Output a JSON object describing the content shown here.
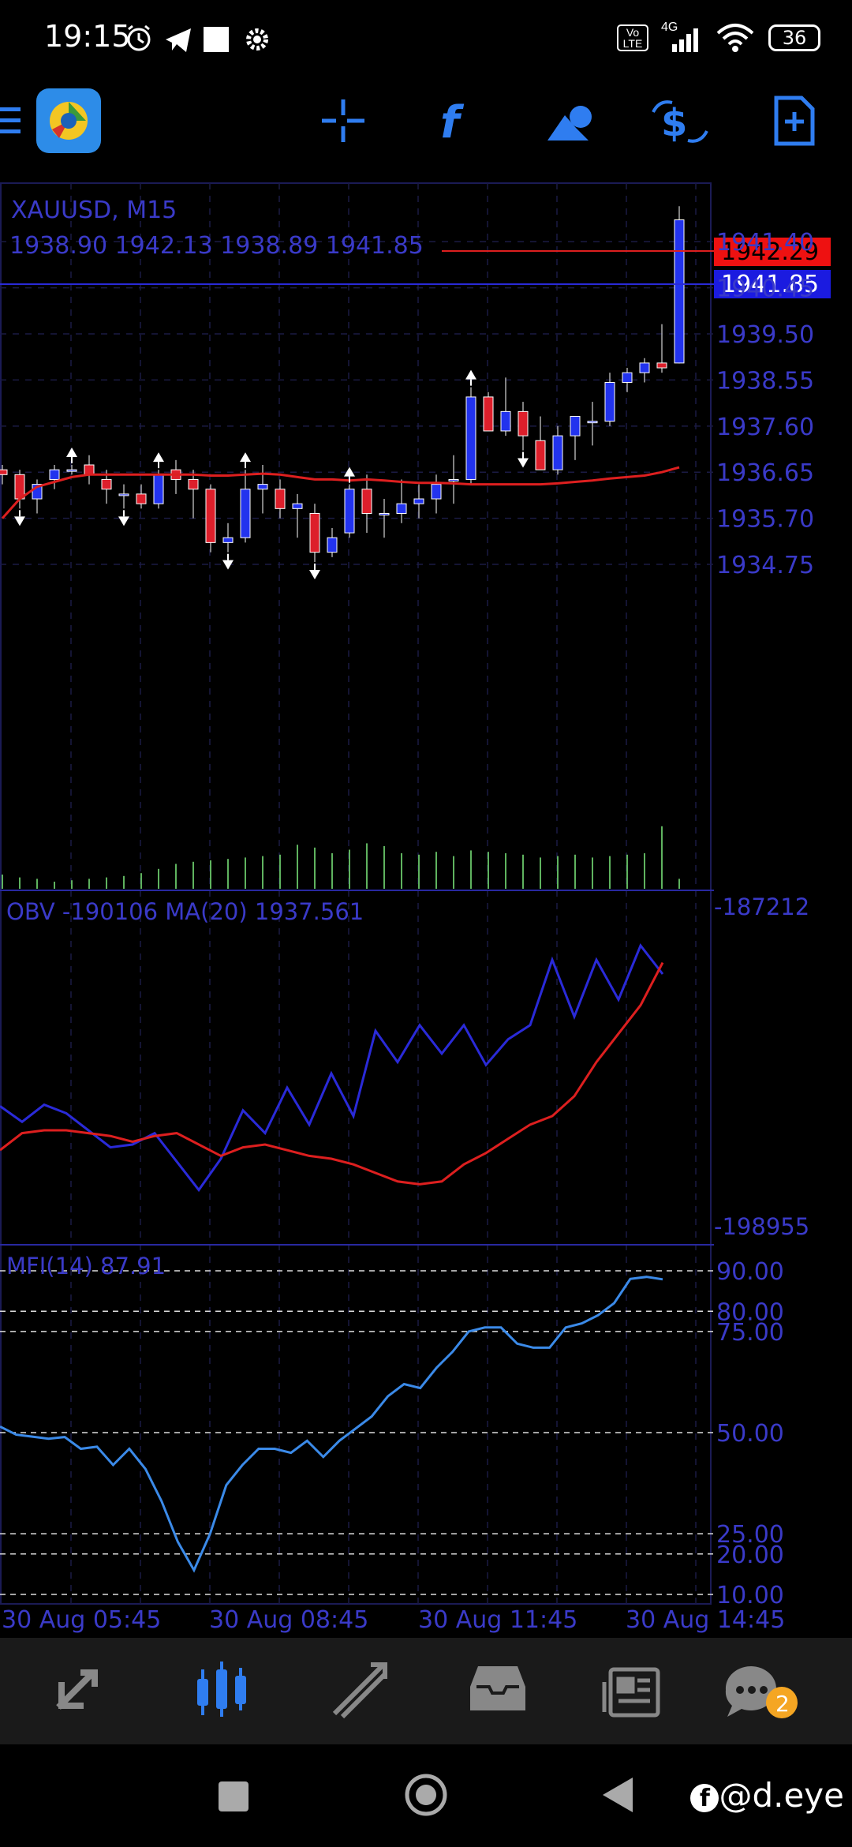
{
  "status_bar": {
    "time": "19:15",
    "network": "4G",
    "volte": "Vo LTE",
    "battery": "36"
  },
  "toolbar": {
    "icons": [
      "menu-icon",
      "app-logo-icon",
      "crosshair-icon",
      "indicator-f-icon",
      "objects-icon",
      "dollar-trade-icon",
      "new-order-icon"
    ]
  },
  "main_chart": {
    "symbol_label": "XAUUSD, M15",
    "ohlc_label": "1938.90 1942.13 1938.89 1941.85",
    "ask_price": "1942.29",
    "bid_price": "1941.85",
    "price_ticks": [
      "1941.40",
      "1940.45",
      "1939.50",
      "1938.55",
      "1937.60",
      "1936.65",
      "1935.70",
      "1934.75"
    ],
    "colors": {
      "bull": "#2233ee",
      "bear": "#dd1f2b",
      "ma": "#dd1f1f",
      "grid": "#1b1b44",
      "axis_text": "#3a3ac8"
    }
  },
  "chart_data": [
    {
      "type": "candlestick",
      "title": "XAUUSD, M15",
      "ylim": [
        1934.1,
        1942.2
      ],
      "candles": [
        {
          "o": 1936.7,
          "h": 1936.8,
          "l": 1936.4,
          "c": 1936.6
        },
        {
          "o": 1936.6,
          "h": 1936.7,
          "l": 1935.9,
          "c": 1936.1
        },
        {
          "o": 1936.1,
          "h": 1936.5,
          "l": 1935.8,
          "c": 1936.4
        },
        {
          "o": 1936.5,
          "h": 1936.8,
          "l": 1936.3,
          "c": 1936.7
        },
        {
          "o": 1936.7,
          "h": 1936.8,
          "l": 1936.6,
          "c": 1936.7
        },
        {
          "o": 1936.8,
          "h": 1937.0,
          "l": 1936.4,
          "c": 1936.6
        },
        {
          "o": 1936.5,
          "h": 1936.7,
          "l": 1936.0,
          "c": 1936.3
        },
        {
          "o": 1936.2,
          "h": 1936.4,
          "l": 1935.9,
          "c": 1936.2
        },
        {
          "o": 1936.2,
          "h": 1936.4,
          "l": 1935.9,
          "c": 1936.0
        },
        {
          "o": 1936.0,
          "h": 1936.7,
          "l": 1935.9,
          "c": 1936.6
        },
        {
          "o": 1936.7,
          "h": 1936.9,
          "l": 1936.2,
          "c": 1936.5
        },
        {
          "o": 1936.5,
          "h": 1936.7,
          "l": 1935.7,
          "c": 1936.3
        },
        {
          "o": 1936.3,
          "h": 1936.4,
          "l": 1935.0,
          "c": 1935.2
        },
        {
          "o": 1935.2,
          "h": 1935.6,
          "l": 1935.0,
          "c": 1935.3
        },
        {
          "o": 1935.3,
          "h": 1936.7,
          "l": 1935.2,
          "c": 1936.3
        },
        {
          "o": 1936.3,
          "h": 1936.8,
          "l": 1935.8,
          "c": 1936.4
        },
        {
          "o": 1936.3,
          "h": 1936.5,
          "l": 1935.7,
          "c": 1935.9
        },
        {
          "o": 1935.9,
          "h": 1936.2,
          "l": 1935.3,
          "c": 1936.0
        },
        {
          "o": 1935.8,
          "h": 1936.0,
          "l": 1934.8,
          "c": 1935.0
        },
        {
          "o": 1935.0,
          "h": 1935.5,
          "l": 1934.9,
          "c": 1935.3
        },
        {
          "o": 1935.4,
          "h": 1936.4,
          "l": 1935.3,
          "c": 1936.3
        },
        {
          "o": 1936.3,
          "h": 1936.6,
          "l": 1935.4,
          "c": 1935.8
        },
        {
          "o": 1935.8,
          "h": 1936.1,
          "l": 1935.3,
          "c": 1935.8
        },
        {
          "o": 1935.8,
          "h": 1936.5,
          "l": 1935.6,
          "c": 1936.0
        },
        {
          "o": 1936.0,
          "h": 1936.4,
          "l": 1935.7,
          "c": 1936.1
        },
        {
          "o": 1936.1,
          "h": 1936.6,
          "l": 1935.8,
          "c": 1936.4
        },
        {
          "o": 1936.5,
          "h": 1937.0,
          "l": 1936.0,
          "c": 1936.5
        },
        {
          "o": 1936.5,
          "h": 1938.4,
          "l": 1936.4,
          "c": 1938.2
        },
        {
          "o": 1938.2,
          "h": 1938.3,
          "l": 1937.5,
          "c": 1937.5
        },
        {
          "o": 1937.5,
          "h": 1938.6,
          "l": 1937.4,
          "c": 1937.9
        },
        {
          "o": 1937.9,
          "h": 1938.1,
          "l": 1937.1,
          "c": 1937.4
        },
        {
          "o": 1937.3,
          "h": 1937.8,
          "l": 1936.7,
          "c": 1936.7
        },
        {
          "o": 1936.7,
          "h": 1937.6,
          "l": 1936.6,
          "c": 1937.4
        },
        {
          "o": 1937.4,
          "h": 1937.8,
          "l": 1936.9,
          "c": 1937.8
        },
        {
          "o": 1937.7,
          "h": 1938.1,
          "l": 1937.2,
          "c": 1937.7
        },
        {
          "o": 1937.7,
          "h": 1938.7,
          "l": 1937.6,
          "c": 1938.5
        },
        {
          "o": 1938.5,
          "h": 1938.8,
          "l": 1938.3,
          "c": 1938.7
        },
        {
          "o": 1938.7,
          "h": 1939.0,
          "l": 1938.5,
          "c": 1938.9
        },
        {
          "o": 1938.9,
          "h": 1939.7,
          "l": 1938.7,
          "c": 1938.8
        },
        {
          "o": 1938.9,
          "h": 1942.13,
          "l": 1938.89,
          "c": 1941.85
        }
      ],
      "ma_line": [
        1935.7,
        1936.1,
        1936.35,
        1936.45,
        1936.55,
        1936.6,
        1936.6,
        1936.6,
        1936.6,
        1936.6,
        1936.6,
        1936.6,
        1936.58,
        1936.58,
        1936.6,
        1936.62,
        1936.6,
        1936.55,
        1936.5,
        1936.5,
        1936.48,
        1936.5,
        1936.48,
        1936.45,
        1936.43,
        1936.43,
        1936.42,
        1936.4,
        1936.4,
        1936.4,
        1936.4,
        1936.4,
        1936.42,
        1936.45,
        1936.48,
        1936.52,
        1936.55,
        1936.58,
        1936.65,
        1936.75
      ],
      "fractals_up": [
        4,
        9,
        14,
        20,
        27
      ],
      "fractals_down": [
        1,
        7,
        13,
        18,
        30
      ],
      "volumes": [
        20,
        16,
        14,
        10,
        12,
        14,
        16,
        18,
        22,
        28,
        35,
        38,
        40,
        42,
        44,
        46,
        48,
        62,
        58,
        50,
        55,
        64,
        60,
        50,
        48,
        52,
        46,
        54,
        52,
        50,
        48,
        44,
        46,
        48,
        44,
        46,
        48,
        50,
        88,
        14
      ]
    },
    {
      "type": "line",
      "title": "OBV -190106 MA(20) 1937.561",
      "ylim": [
        "-198955",
        "-187212"
      ],
      "series": [
        {
          "name": "OBV",
          "values": [
            0.385,
            0.33,
            0.39,
            0.36,
            0.3,
            0.24,
            0.25,
            0.29,
            0.19,
            0.09,
            0.2,
            0.37,
            0.29,
            0.45,
            0.32,
            0.5,
            0.35,
            0.65,
            0.54,
            0.67,
            0.57,
            0.67,
            0.53,
            0.62,
            0.67,
            0.9,
            0.7,
            0.9,
            0.76,
            0.95,
            0.85
          ]
        },
        {
          "name": "MA(20)",
          "values": [
            0.23,
            0.29,
            0.3,
            0.3,
            0.29,
            0.28,
            0.26,
            0.28,
            0.29,
            0.25,
            0.21,
            0.24,
            0.25,
            0.23,
            0.21,
            0.2,
            0.18,
            0.15,
            0.12,
            0.11,
            0.12,
            0.18,
            0.22,
            0.27,
            0.32,
            0.35,
            0.42,
            0.54,
            0.64,
            0.74,
            0.89
          ]
        }
      ]
    },
    {
      "type": "line",
      "title": "MFI(14) 87.91",
      "ylim": [
        10,
        90
      ],
      "levels": [
        "90.00",
        "80.00",
        "75.00",
        "50.00",
        "25.00",
        "20.00",
        "10.00"
      ],
      "series": [
        {
          "name": "MFI(14)",
          "values": [
            51.5,
            49.5,
            49,
            48.5,
            48.9,
            46,
            46.5,
            42,
            46,
            41,
            33,
            23,
            16,
            25,
            37,
            42,
            46,
            46,
            45,
            48,
            44,
            48,
            51,
            54,
            59,
            62,
            61,
            66,
            70,
            75,
            76,
            76,
            72,
            71,
            71,
            76,
            77,
            79,
            82,
            88,
            88.5,
            87.9
          ]
        }
      ]
    }
  ],
  "time_axis": [
    "30 Aug 05:45",
    "30 Aug 08:45",
    "30 Aug 11:45",
    "30 Aug 14:45"
  ],
  "bottom_nav": {
    "tabs": [
      "quotes-tab",
      "chart-tab",
      "trade-tab",
      "history-tab",
      "news-tab",
      "messages-tab"
    ],
    "messages_badge": "2"
  },
  "watermark": "@d.eye"
}
